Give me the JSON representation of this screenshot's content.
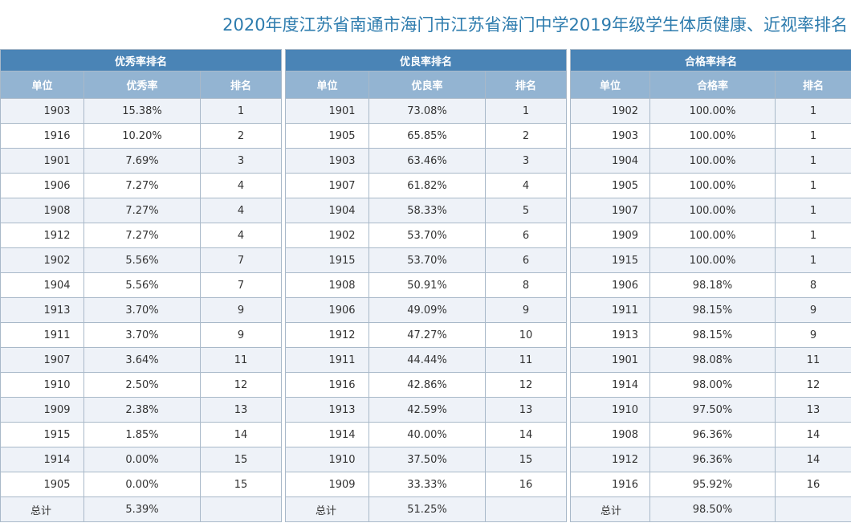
{
  "title": "2020年度江苏省南通市海门市江苏省海门中学2019年级学生体质健康、近视率排名",
  "tables": [
    {
      "caption": "优秀率排名",
      "headers": [
        "单位",
        "优秀率",
        "排名"
      ],
      "rows": [
        [
          "1903",
          "15.38%",
          "1"
        ],
        [
          "1916",
          "10.20%",
          "2"
        ],
        [
          "1901",
          "7.69%",
          "3"
        ],
        [
          "1906",
          "7.27%",
          "4"
        ],
        [
          "1908",
          "7.27%",
          "4"
        ],
        [
          "1912",
          "7.27%",
          "4"
        ],
        [
          "1902",
          "5.56%",
          "7"
        ],
        [
          "1904",
          "5.56%",
          "7"
        ],
        [
          "1913",
          "3.70%",
          "9"
        ],
        [
          "1911",
          "3.70%",
          "9"
        ],
        [
          "1907",
          "3.64%",
          "11"
        ],
        [
          "1910",
          "2.50%",
          "12"
        ],
        [
          "1909",
          "2.38%",
          "13"
        ],
        [
          "1915",
          "1.85%",
          "14"
        ],
        [
          "1914",
          "0.00%",
          "15"
        ],
        [
          "1905",
          "0.00%",
          "15"
        ]
      ],
      "total": [
        "总计",
        "5.39%",
        ""
      ]
    },
    {
      "caption": "优良率排名",
      "headers": [
        "单位",
        "优良率",
        "排名"
      ],
      "rows": [
        [
          "1901",
          "73.08%",
          "1"
        ],
        [
          "1905",
          "65.85%",
          "2"
        ],
        [
          "1903",
          "63.46%",
          "3"
        ],
        [
          "1907",
          "61.82%",
          "4"
        ],
        [
          "1904",
          "58.33%",
          "5"
        ],
        [
          "1902",
          "53.70%",
          "6"
        ],
        [
          "1915",
          "53.70%",
          "6"
        ],
        [
          "1908",
          "50.91%",
          "8"
        ],
        [
          "1906",
          "49.09%",
          "9"
        ],
        [
          "1912",
          "47.27%",
          "10"
        ],
        [
          "1911",
          "44.44%",
          "11"
        ],
        [
          "1916",
          "42.86%",
          "12"
        ],
        [
          "1913",
          "42.59%",
          "13"
        ],
        [
          "1914",
          "40.00%",
          "14"
        ],
        [
          "1910",
          "37.50%",
          "15"
        ],
        [
          "1909",
          "33.33%",
          "16"
        ]
      ],
      "total": [
        "总计",
        "51.25%",
        ""
      ]
    },
    {
      "caption": "合格率排名",
      "headers": [
        "单位",
        "合格率",
        "排名"
      ],
      "rows": [
        [
          "1902",
          "100.00%",
          "1"
        ],
        [
          "1903",
          "100.00%",
          "1"
        ],
        [
          "1904",
          "100.00%",
          "1"
        ],
        [
          "1905",
          "100.00%",
          "1"
        ],
        [
          "1907",
          "100.00%",
          "1"
        ],
        [
          "1909",
          "100.00%",
          "1"
        ],
        [
          "1915",
          "100.00%",
          "1"
        ],
        [
          "1906",
          "98.18%",
          "8"
        ],
        [
          "1911",
          "98.15%",
          "9"
        ],
        [
          "1913",
          "98.15%",
          "9"
        ],
        [
          "1901",
          "98.08%",
          "11"
        ],
        [
          "1914",
          "98.00%",
          "12"
        ],
        [
          "1910",
          "97.50%",
          "13"
        ],
        [
          "1908",
          "96.36%",
          "14"
        ],
        [
          "1912",
          "96.36%",
          "14"
        ],
        [
          "1916",
          "95.92%",
          "16"
        ]
      ],
      "total": [
        "总计",
        "98.50%",
        ""
      ]
    }
  ]
}
